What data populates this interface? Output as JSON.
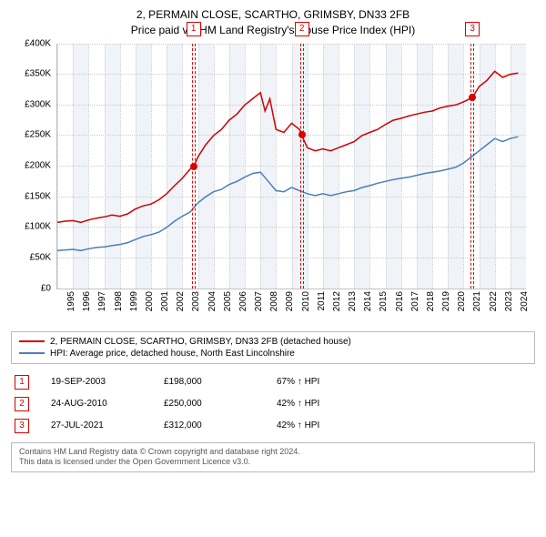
{
  "title": {
    "line1": "2, PERMAIN CLOSE, SCARTHO, GRIMSBY, DN33 2FB",
    "line2": "Price paid vs. HM Land Registry's House Price Index (HPI)"
  },
  "chart": {
    "type": "line",
    "background_color": "#ffffff",
    "alt_band_color": "#eef2f7",
    "grid_color": "#cccccc",
    "x_start": 1995,
    "x_end": 2025,
    "x_ticks": [
      1995,
      1996,
      1997,
      1998,
      1999,
      2000,
      2001,
      2002,
      2003,
      2004,
      2005,
      2006,
      2007,
      2008,
      2009,
      2010,
      2011,
      2012,
      2013,
      2014,
      2015,
      2016,
      2017,
      2018,
      2019,
      2020,
      2021,
      2022,
      2023,
      2024
    ],
    "ylim": [
      0,
      400000
    ],
    "y_ticks": [
      0,
      50000,
      100000,
      150000,
      200000,
      250000,
      300000,
      350000,
      400000
    ],
    "y_tick_labels": [
      "£0",
      "£50K",
      "£100K",
      "£150K",
      "£200K",
      "£250K",
      "£300K",
      "£350K",
      "£400K"
    ],
    "series": [
      {
        "id": "price_paid",
        "label": "2, PERMAIN CLOSE, SCARTHO, GRIMSBY, DN33 2FB (detached house)",
        "color": "#d00000",
        "line_width": 1.5,
        "points": [
          [
            1995.0,
            108000
          ],
          [
            1995.5,
            110000
          ],
          [
            1996.0,
            111000
          ],
          [
            1996.5,
            108000
          ],
          [
            1997.0,
            112000
          ],
          [
            1997.5,
            115000
          ],
          [
            1998.0,
            117000
          ],
          [
            1998.5,
            120000
          ],
          [
            1999.0,
            118000
          ],
          [
            1999.5,
            122000
          ],
          [
            2000.0,
            130000
          ],
          [
            2000.5,
            135000
          ],
          [
            2001.0,
            138000
          ],
          [
            2001.5,
            145000
          ],
          [
            2002.0,
            155000
          ],
          [
            2002.5,
            168000
          ],
          [
            2003.0,
            180000
          ],
          [
            2003.5,
            195000
          ],
          [
            2003.72,
            198000
          ],
          [
            2004.0,
            215000
          ],
          [
            2004.5,
            235000
          ],
          [
            2005.0,
            250000
          ],
          [
            2005.5,
            260000
          ],
          [
            2006.0,
            275000
          ],
          [
            2006.5,
            285000
          ],
          [
            2007.0,
            300000
          ],
          [
            2007.5,
            310000
          ],
          [
            2008.0,
            320000
          ],
          [
            2008.3,
            290000
          ],
          [
            2008.6,
            310000
          ],
          [
            2009.0,
            260000
          ],
          [
            2009.5,
            255000
          ],
          [
            2010.0,
            270000
          ],
          [
            2010.5,
            260000
          ],
          [
            2010.65,
            250000
          ],
          [
            2011.0,
            230000
          ],
          [
            2011.5,
            225000
          ],
          [
            2012.0,
            228000
          ],
          [
            2012.5,
            225000
          ],
          [
            2013.0,
            230000
          ],
          [
            2013.5,
            235000
          ],
          [
            2014.0,
            240000
          ],
          [
            2014.5,
            250000
          ],
          [
            2015.0,
            255000
          ],
          [
            2015.5,
            260000
          ],
          [
            2016.0,
            268000
          ],
          [
            2016.5,
            275000
          ],
          [
            2017.0,
            278000
          ],
          [
            2017.5,
            282000
          ],
          [
            2018.0,
            285000
          ],
          [
            2018.5,
            288000
          ],
          [
            2019.0,
            290000
          ],
          [
            2019.5,
            295000
          ],
          [
            2020.0,
            298000
          ],
          [
            2020.5,
            300000
          ],
          [
            2021.0,
            305000
          ],
          [
            2021.57,
            312000
          ],
          [
            2022.0,
            330000
          ],
          [
            2022.5,
            340000
          ],
          [
            2023.0,
            355000
          ],
          [
            2023.5,
            345000
          ],
          [
            2024.0,
            350000
          ],
          [
            2024.5,
            352000
          ]
        ]
      },
      {
        "id": "hpi",
        "label": "HPI: Average price, detached house, North East Lincolnshire",
        "color": "#4a7ebb",
        "line_width": 1.5,
        "points": [
          [
            1995.0,
            62000
          ],
          [
            1995.5,
            63000
          ],
          [
            1996.0,
            64000
          ],
          [
            1996.5,
            62000
          ],
          [
            1997.0,
            65000
          ],
          [
            1997.5,
            67000
          ],
          [
            1998.0,
            68000
          ],
          [
            1998.5,
            70000
          ],
          [
            1999.0,
            72000
          ],
          [
            1999.5,
            75000
          ],
          [
            2000.0,
            80000
          ],
          [
            2000.5,
            85000
          ],
          [
            2001.0,
            88000
          ],
          [
            2001.5,
            92000
          ],
          [
            2002.0,
            100000
          ],
          [
            2002.5,
            110000
          ],
          [
            2003.0,
            118000
          ],
          [
            2003.5,
            125000
          ],
          [
            2004.0,
            140000
          ],
          [
            2004.5,
            150000
          ],
          [
            2005.0,
            158000
          ],
          [
            2005.5,
            162000
          ],
          [
            2006.0,
            170000
          ],
          [
            2006.5,
            175000
          ],
          [
            2007.0,
            182000
          ],
          [
            2007.5,
            188000
          ],
          [
            2008.0,
            190000
          ],
          [
            2008.5,
            175000
          ],
          [
            2009.0,
            160000
          ],
          [
            2009.5,
            158000
          ],
          [
            2010.0,
            165000
          ],
          [
            2010.5,
            160000
          ],
          [
            2011.0,
            155000
          ],
          [
            2011.5,
            152000
          ],
          [
            2012.0,
            155000
          ],
          [
            2012.5,
            152000
          ],
          [
            2013.0,
            155000
          ],
          [
            2013.5,
            158000
          ],
          [
            2014.0,
            160000
          ],
          [
            2014.5,
            165000
          ],
          [
            2015.0,
            168000
          ],
          [
            2015.5,
            172000
          ],
          [
            2016.0,
            175000
          ],
          [
            2016.5,
            178000
          ],
          [
            2017.0,
            180000
          ],
          [
            2017.5,
            182000
          ],
          [
            2018.0,
            185000
          ],
          [
            2018.5,
            188000
          ],
          [
            2019.0,
            190000
          ],
          [
            2019.5,
            192000
          ],
          [
            2020.0,
            195000
          ],
          [
            2020.5,
            198000
          ],
          [
            2021.0,
            205000
          ],
          [
            2021.5,
            215000
          ],
          [
            2022.0,
            225000
          ],
          [
            2022.5,
            235000
          ],
          [
            2023.0,
            245000
          ],
          [
            2023.5,
            240000
          ],
          [
            2024.0,
            245000
          ],
          [
            2024.5,
            248000
          ]
        ]
      }
    ],
    "markers": [
      {
        "n": "1",
        "year": 2003.72,
        "date": "19-SEP-2003",
        "price_str": "£198,000",
        "pct": "67% ↑ HPI",
        "value": 198000
      },
      {
        "n": "2",
        "year": 2010.65,
        "date": "24-AUG-2010",
        "price_str": "£250,000",
        "pct": "42% ↑ HPI",
        "value": 250000
      },
      {
        "n": "3",
        "year": 2021.57,
        "date": "27-JUL-2021",
        "price_str": "£312,000",
        "pct": "42% ↑ HPI",
        "value": 312000
      }
    ]
  },
  "footer": {
    "line1": "Contains HM Land Registry data © Crown copyright and database right 2024.",
    "line2": "This data is licensed under the Open Government Licence v3.0."
  }
}
